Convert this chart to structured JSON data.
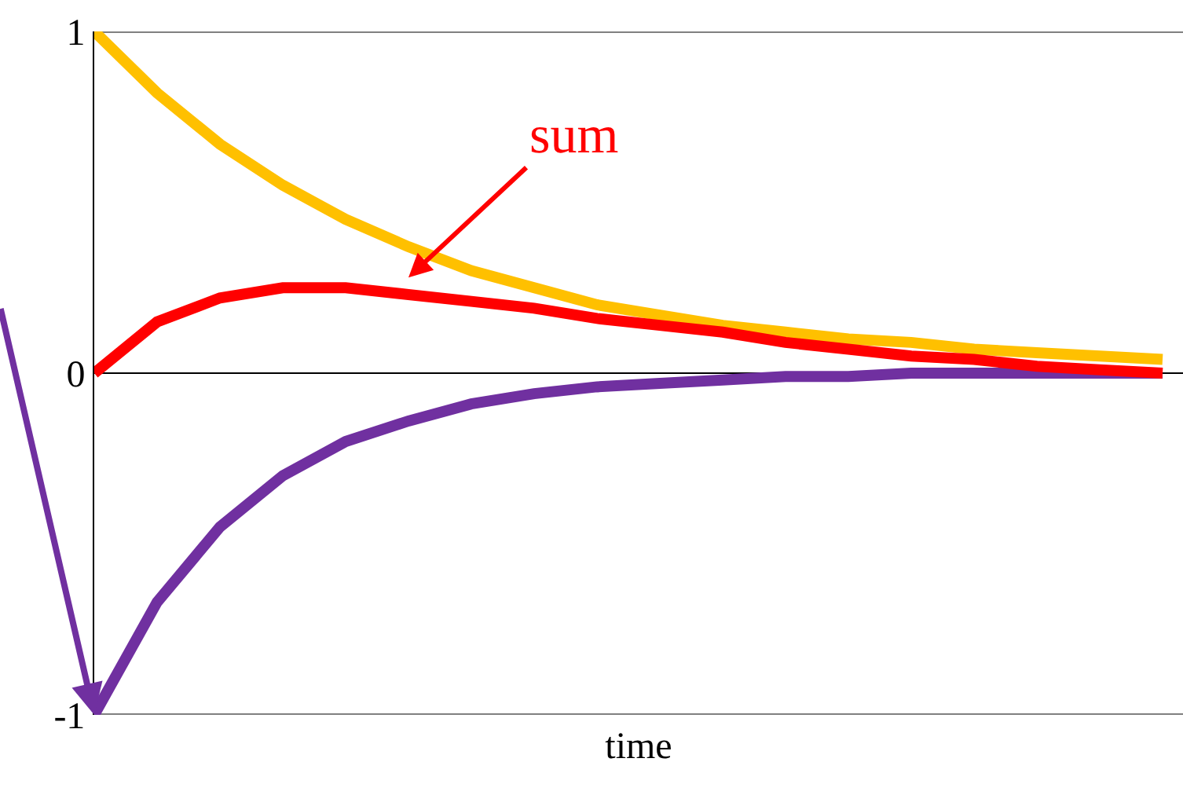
{
  "chart_data": {
    "type": "line",
    "xlabel": "time",
    "categories": [
      null,
      null,
      null,
      null,
      null,
      null,
      null,
      null,
      null,
      null,
      null,
      null,
      null,
      null,
      null,
      null,
      null,
      null
    ],
    "series": [
      {
        "color": "#ffc000",
        "values": [
          1,
          0.82,
          0.67,
          0.55,
          0.45,
          0.37,
          0.3,
          0.25,
          0.2,
          0.17,
          0.14,
          0.12,
          0.1,
          0.09,
          0.07,
          0.06,
          0.05,
          0.04
        ]
      },
      {
        "color": "#7030a0",
        "values": [
          -1,
          -0.67,
          -0.45,
          -0.3,
          -0.2,
          -0.14,
          -0.09,
          -0.06,
          -0.04,
          -0.03,
          -0.02,
          -0.01,
          -0.01,
          0,
          0,
          0,
          0,
          0
        ]
      },
      {
        "name": "sum",
        "color": "#ff0000",
        "values": [
          0,
          0.15,
          0.22,
          0.25,
          0.25,
          0.23,
          0.21,
          0.19,
          0.16,
          0.14,
          0.12,
          0.09,
          0.07,
          0.05,
          0.04,
          0.02,
          0.01,
          0
        ]
      }
    ],
    "ylim": [
      -1,
      1
    ],
    "yticks": [
      -1,
      0,
      1
    ],
    "grid": "y",
    "legend": false,
    "marker": "none",
    "line_style": "solid"
  }
}
